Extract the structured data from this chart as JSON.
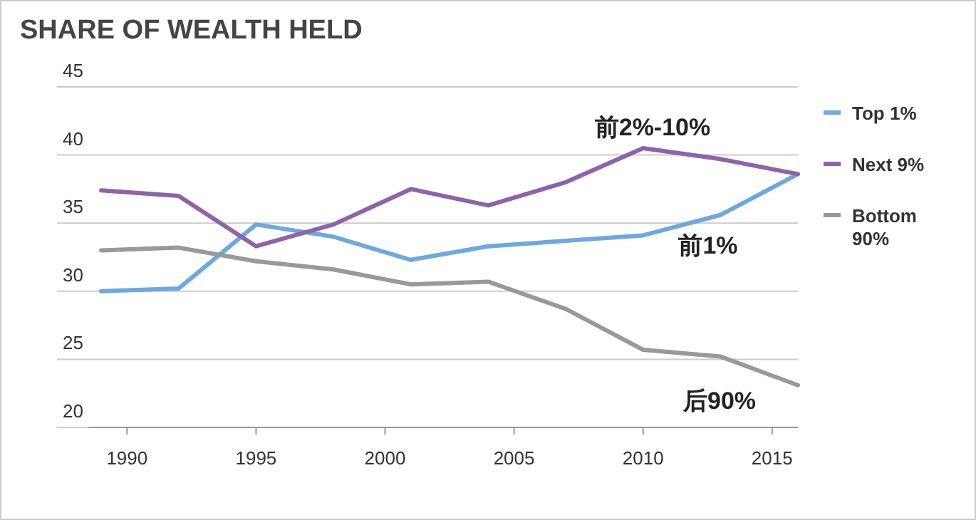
{
  "chart_data": {
    "type": "line",
    "title": "SHARE OF WEALTH HELD",
    "x": [
      1989,
      1992,
      1995,
      1998,
      2001,
      2004,
      2007,
      2010,
      2013,
      2016
    ],
    "series": [
      {
        "name": "Top 1%",
        "color": "#6fa8dc",
        "values": [
          30.0,
          30.2,
          34.9,
          34.0,
          32.3,
          33.3,
          33.7,
          34.1,
          35.6,
          38.6
        ]
      },
      {
        "name": "Next 9%",
        "color": "#8e63a8",
        "values": [
          37.4,
          37.0,
          33.3,
          34.9,
          37.5,
          36.3,
          38.0,
          40.5,
          39.7,
          38.6
        ]
      },
      {
        "name": "Bottom 90%",
        "color": "#999999",
        "values": [
          33.0,
          33.2,
          32.2,
          31.6,
          30.5,
          30.7,
          28.7,
          25.7,
          25.2,
          23.1
        ]
      }
    ],
    "xlim": [
      1988.5,
      2016
    ],
    "ylim": [
      20,
      45
    ],
    "xticks": [
      1990,
      1995,
      2000,
      2005,
      2010,
      2015
    ],
    "yticks": [
      20,
      25,
      30,
      35,
      40,
      45
    ],
    "grid": "y",
    "legend": "right",
    "marker": "none",
    "line_style": "solid",
    "annotations": [
      "前2%-10%",
      "前1%",
      "后90%"
    ]
  }
}
